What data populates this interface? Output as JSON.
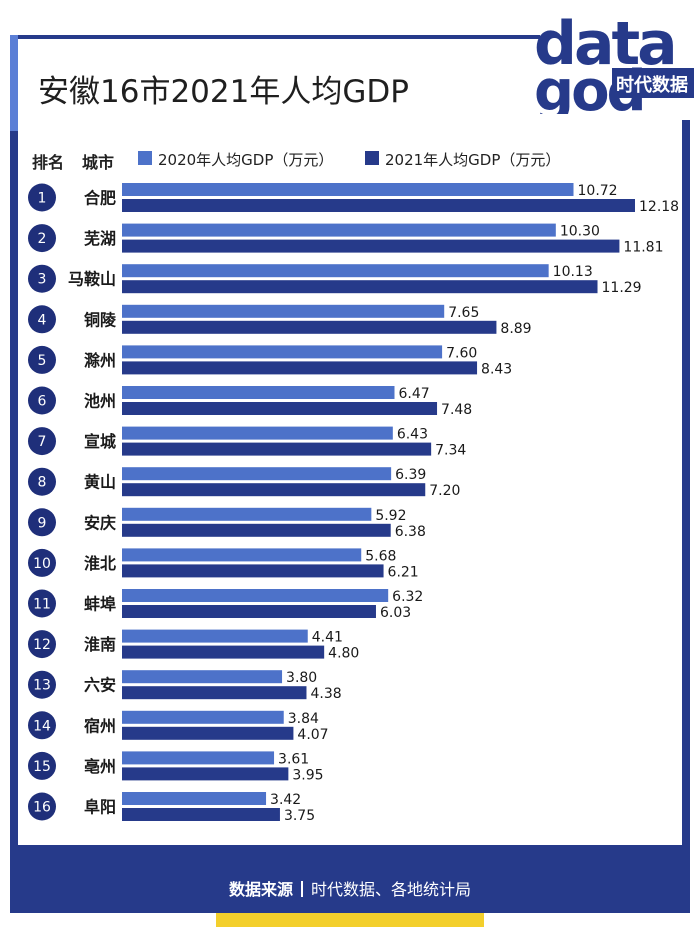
{
  "title": "安徽16市2021年人均GDP",
  "logo": {
    "line1": "data",
    "line2": "god",
    "brand": "时代数据"
  },
  "header": {
    "rank_label": "排名",
    "city_label": "城市"
  },
  "colors": {
    "series_2020": "#4d72c9",
    "series_2021": "#263a8a",
    "badge": "#1f2f7a",
    "footer": "#263a8a",
    "accent_yellow": "#f3cf2c"
  },
  "source": {
    "label": "数据来源",
    "text": "时代数据、各地统计局"
  },
  "chart_data": {
    "type": "bar",
    "orientation": "horizontal",
    "title": "安徽16市2021年人均GDP",
    "unit": "万元",
    "categories": [
      "合肥",
      "芜湖",
      "马鞍山",
      "铜陵",
      "滁州",
      "池州",
      "宣城",
      "黄山",
      "安庆",
      "淮北",
      "蚌埠",
      "淮南",
      "六安",
      "宿州",
      "亳州",
      "阜阳"
    ],
    "ranks": [
      "1",
      "2",
      "3",
      "4",
      "5",
      "6",
      "7",
      "8",
      "9",
      "10",
      "11",
      "12",
      "13",
      "14",
      "15",
      "16"
    ],
    "series": [
      {
        "name": "2020年人均GDP（万元）",
        "values": [
          10.72,
          10.3,
          10.13,
          7.65,
          7.6,
          6.47,
          6.43,
          6.39,
          5.92,
          5.68,
          6.32,
          4.41,
          3.8,
          3.84,
          3.61,
          3.42
        ]
      },
      {
        "name": "2021年人均GDP（万元）",
        "values": [
          12.18,
          11.81,
          11.29,
          8.89,
          8.43,
          7.48,
          7.34,
          7.2,
          6.38,
          6.21,
          6.03,
          4.8,
          4.38,
          4.07,
          3.95,
          3.75
        ]
      }
    ],
    "value_labels": [
      [
        "10.72",
        "10.30",
        "10.13",
        "7.65",
        "7.60",
        "6.47",
        "6.43",
        "6.39",
        "5.92",
        "5.68",
        "6.32",
        "4.41",
        "3.80",
        "3.84",
        "3.61",
        "3.42"
      ],
      [
        "12.18",
        "11.81",
        "11.29",
        "8.89",
        "8.43",
        "7.48",
        "7.34",
        "7.20",
        "6.38",
        "6.21",
        "6.03",
        "4.80",
        "4.38",
        "4.07",
        "3.95",
        "3.75"
      ]
    ],
    "xlim": [
      0,
      12.18
    ],
    "grid": false,
    "legend": "top"
  }
}
